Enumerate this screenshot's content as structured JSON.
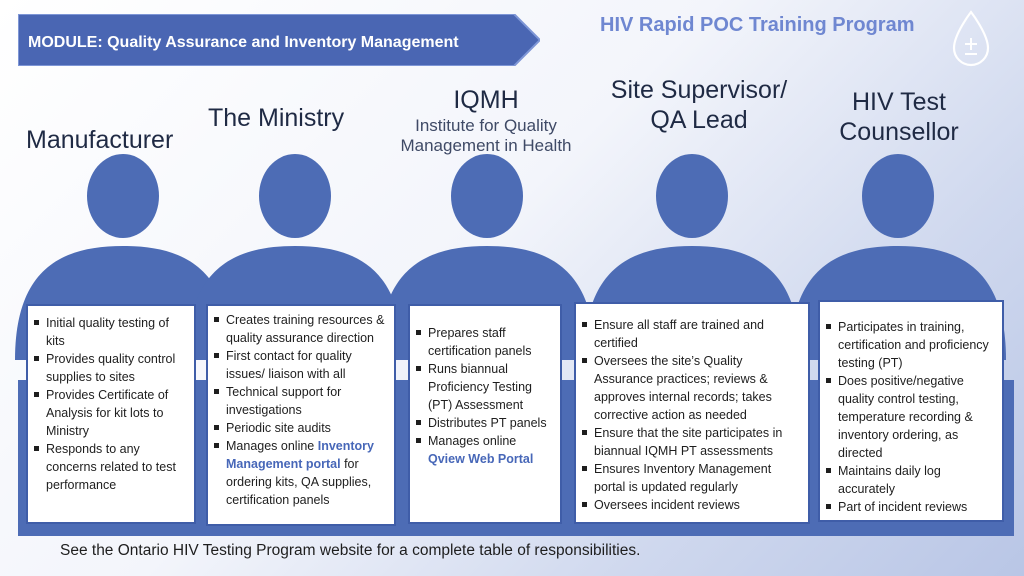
{
  "header": {
    "module_label": "MODULE: Quality Assurance and Inventory Management",
    "program_title": "HIV Rapid POC Training Program",
    "icon": "drop-plus-minus-icon"
  },
  "roles": [
    {
      "title": "Manufacturer",
      "subtitle": "",
      "items": [
        {
          "text": "Initial quality testing of kits"
        },
        {
          "text": "Provides quality control supplies to sites"
        },
        {
          "text": "Provides Certificate of Analysis for kit lots to Ministry"
        },
        {
          "text": "Responds to any concerns related to test performance"
        }
      ]
    },
    {
      "title": "The Ministry",
      "subtitle": "",
      "items": [
        {
          "text": "Creates training resources & quality assurance direction"
        },
        {
          "text": "First contact for quality issues/ liaison with all"
        },
        {
          "text": "Technical support for investigations"
        },
        {
          "text": "Periodic site audits"
        },
        {
          "pre": "Manages online ",
          "link": "Inventory Management portal",
          "post": " for ordering kits, QA supplies, certification panels"
        }
      ]
    },
    {
      "title": "IQMH",
      "subtitle": "Institute for Quality Management in Health",
      "items": [
        {
          "text": "Prepares staff certification panels"
        },
        {
          "text": "Runs biannual Proficiency Testing (PT) Assessment"
        },
        {
          "text": "Distributes PT panels"
        },
        {
          "pre": "Manages online ",
          "link": "Qview Web Portal",
          "post": ""
        }
      ]
    },
    {
      "title": "Site Supervisor/ QA Lead",
      "subtitle": "",
      "items": [
        {
          "text": "Ensure all staff are trained and certified"
        },
        {
          "text": "Oversees the site’s Quality Assurance practices; reviews & approves internal records; takes corrective action as needed"
        },
        {
          "text": "Ensure that the site participates in biannual IQMH PT assessments"
        },
        {
          "text": " Ensures Inventory Management portal is updated regularly"
        },
        {
          "text": "Oversees incident reviews"
        }
      ]
    },
    {
      "title": "HIV Test Counsellor",
      "subtitle": "",
      "items": [
        {
          "text": "Participates in training, certification and proficiency testing (PT)"
        },
        {
          "text": "Does positive/negative quality control testing, temperature recording & inventory ordering, as directed"
        },
        {
          "text": "Maintains daily log accurately"
        },
        {
          "text": "Part of incident reviews"
        }
      ]
    }
  ],
  "footnote": "See the Ontario HIV Testing Program website for a complete table of responsibilities.",
  "colors": {
    "accent": "#4d6cb5",
    "banner": "#4a66b3",
    "title": "#6f87d1",
    "link": "#4767b8"
  }
}
